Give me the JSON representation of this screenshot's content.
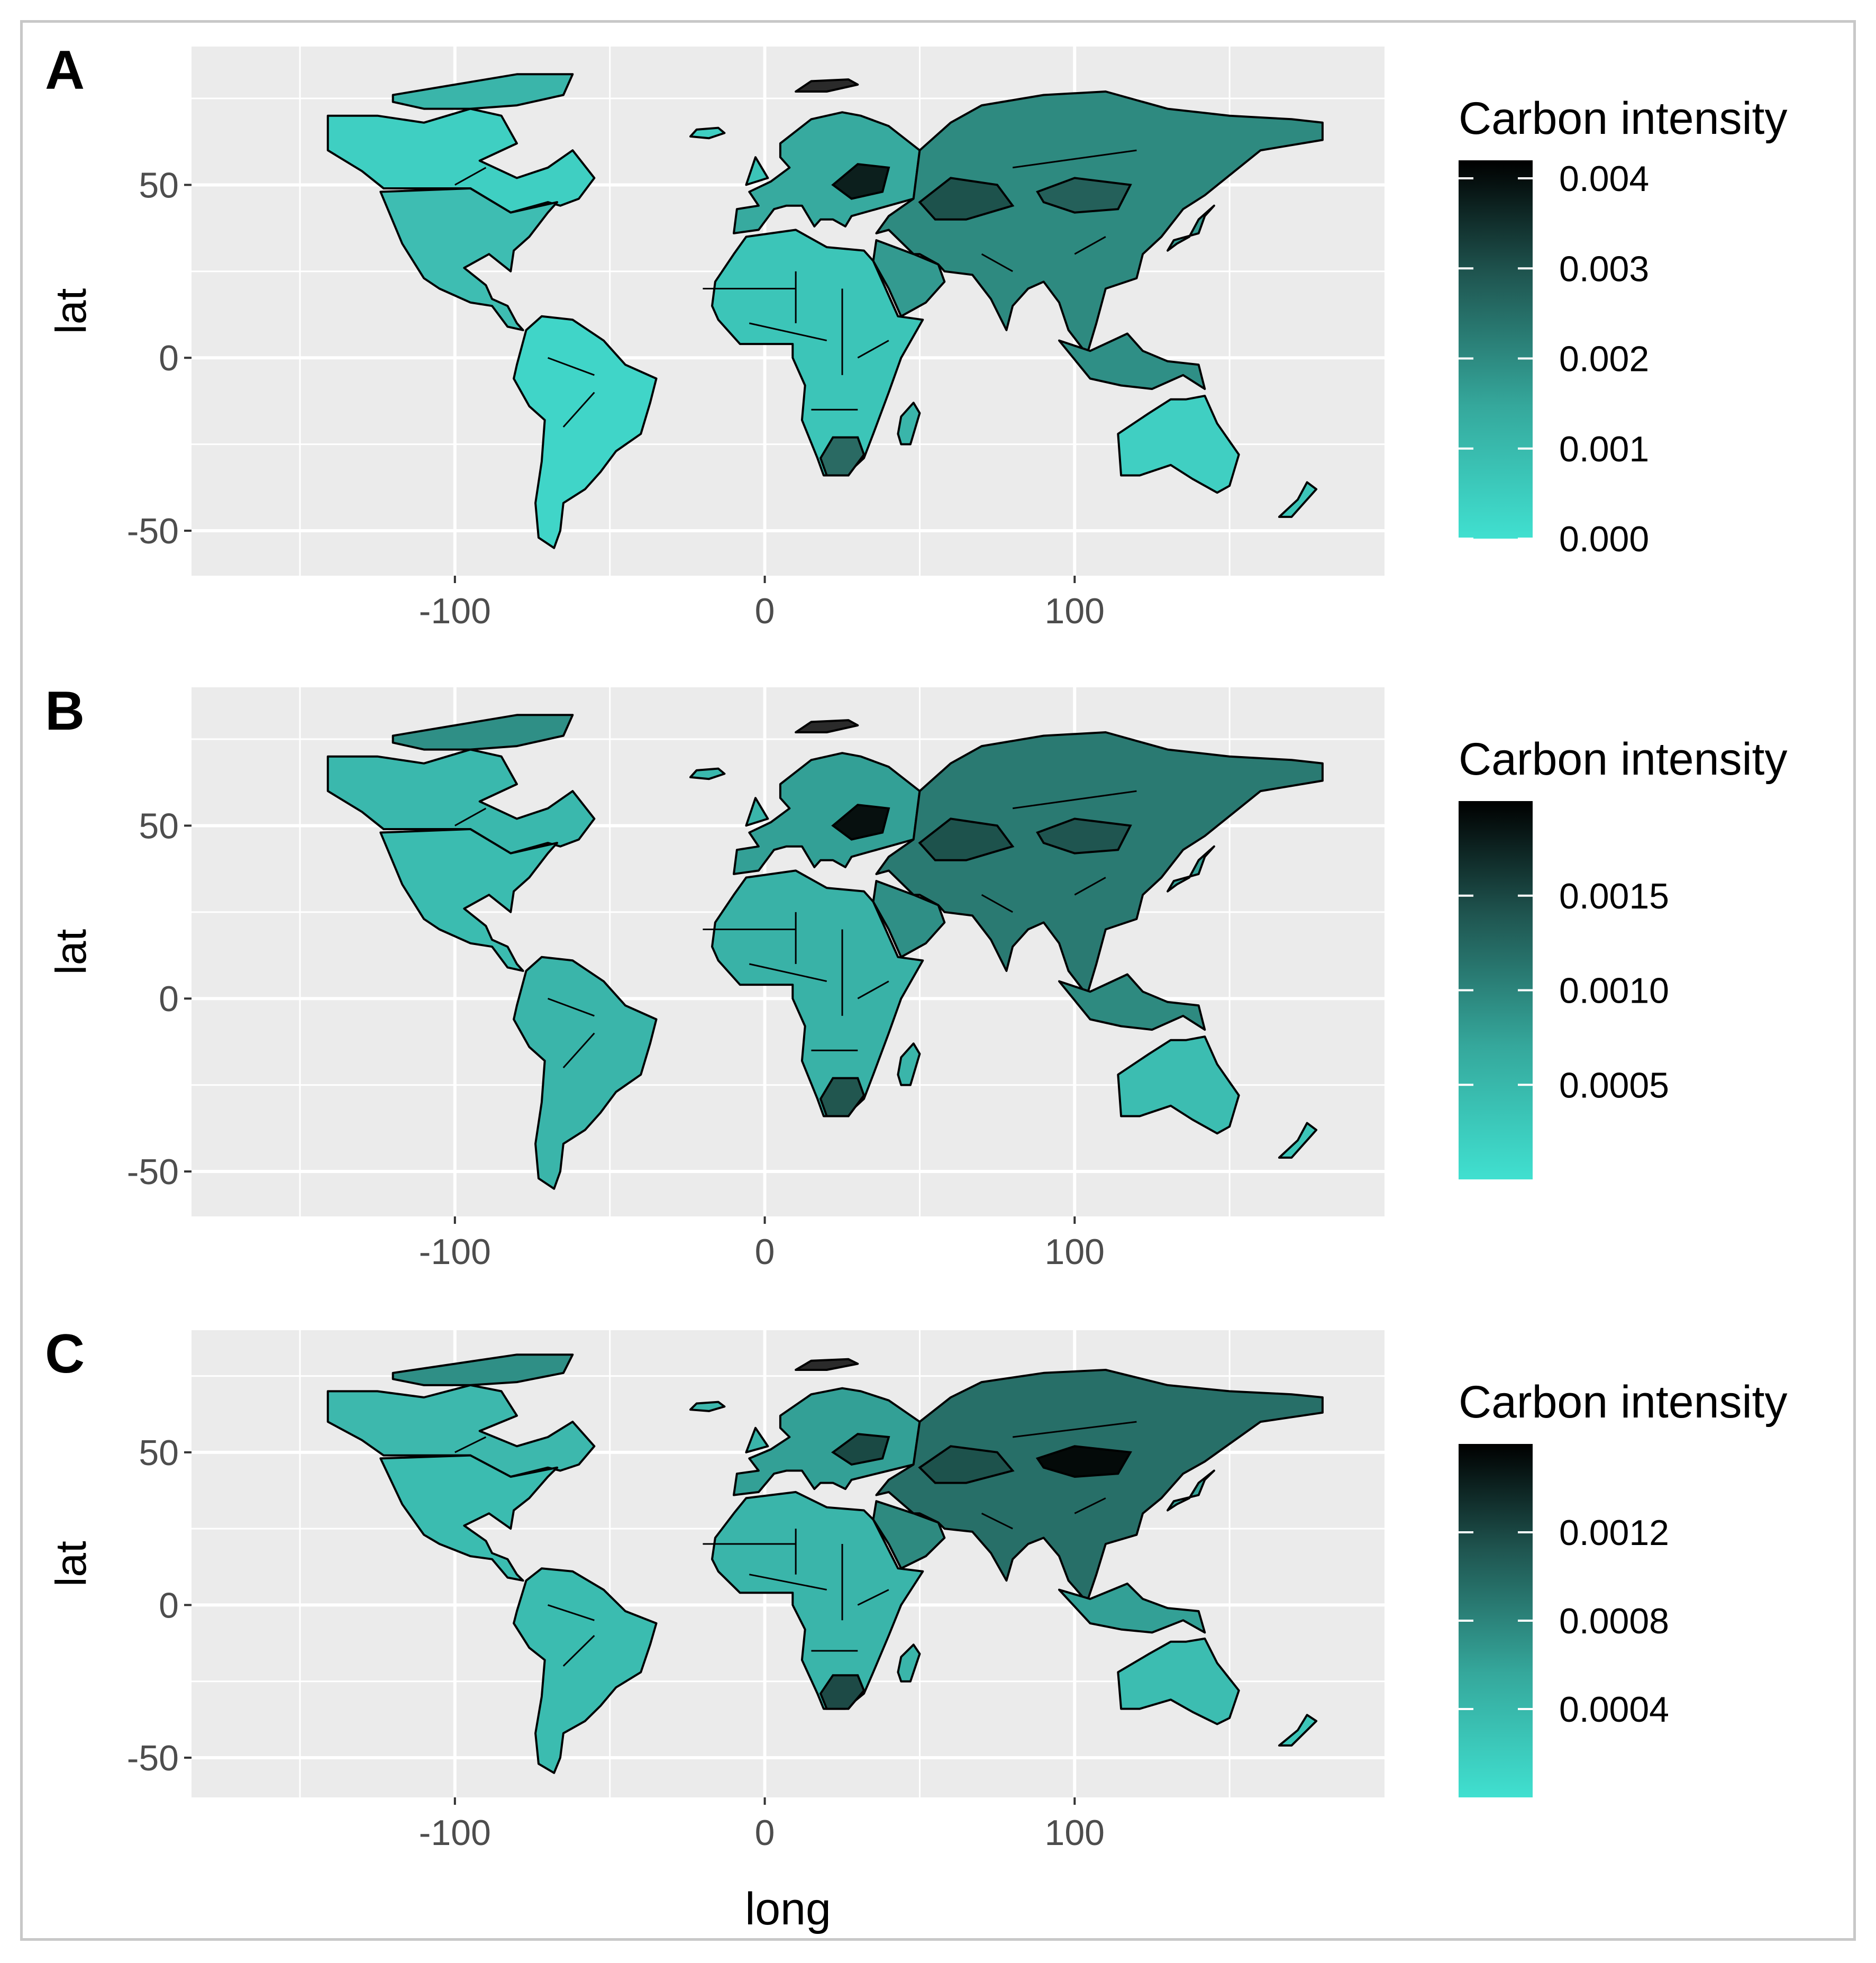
{
  "figure": {
    "panels": [
      {
        "id": "panel-a",
        "letter": "A",
        "x_label": "",
        "y_label": "lat",
        "legend_title": "Carbon intensity",
        "legend_ticks": [
          "0.004",
          "0.003",
          "0.002",
          "0.001",
          "0.000"
        ]
      },
      {
        "id": "panel-b",
        "letter": "B",
        "x_label": "",
        "y_label": "lat",
        "legend_title": "Carbon intensity",
        "legend_ticks": [
          "0.0015",
          "0.0010",
          "0.0005"
        ]
      },
      {
        "id": "panel-c",
        "letter": "C",
        "x_label": "long",
        "y_label": "lat",
        "legend_title": "Carbon intensity",
        "legend_ticks": [
          "0.0012",
          "0.0008",
          "0.0004"
        ]
      }
    ],
    "x_ticks": [
      "-100",
      "0",
      "100"
    ],
    "y_ticks": [
      "50",
      "0",
      "-50"
    ],
    "colors": {
      "panel_bg": "#ebebeb",
      "grid": "#ffffff",
      "low": "#40e0d0",
      "high": "#000000"
    }
  },
  "chart_data": [
    {
      "type": "choropleth-map",
      "panel": "A",
      "title": "",
      "xlabel": "",
      "ylabel": "lat",
      "x_ticks": [
        -100,
        0,
        100
      ],
      "y_ticks": [
        50,
        0,
        -50
      ],
      "xlim": [
        -185,
        200
      ],
      "ylim": [
        -63,
        90
      ],
      "legend": {
        "title": "Carbon intensity",
        "range": [
          0,
          0.0042
        ],
        "breaks": [
          0.004,
          0.003,
          0.002,
          0.001,
          0.0
        ]
      }
    },
    {
      "type": "choropleth-map",
      "panel": "B",
      "title": "",
      "xlabel": "",
      "ylabel": "lat",
      "x_ticks": [
        -100,
        0,
        100
      ],
      "y_ticks": [
        50,
        0,
        -50
      ],
      "xlim": [
        -185,
        200
      ],
      "ylim": [
        -63,
        90
      ],
      "legend": {
        "title": "Carbon intensity",
        "range": [
          0,
          0.002
        ],
        "breaks": [
          0.0015,
          0.001,
          0.0005
        ]
      }
    },
    {
      "type": "choropleth-map",
      "panel": "C",
      "title": "",
      "xlabel": "long",
      "ylabel": "lat",
      "x_ticks": [
        -100,
        0,
        100
      ],
      "y_ticks": [
        50,
        0,
        -50
      ],
      "xlim": [
        -185,
        200
      ],
      "ylim": [
        -63,
        90
      ],
      "legend": {
        "title": "Carbon intensity",
        "range": [
          0,
          0.0016
        ],
        "breaks": [
          0.0012,
          0.0008,
          0.0004
        ]
      }
    }
  ]
}
